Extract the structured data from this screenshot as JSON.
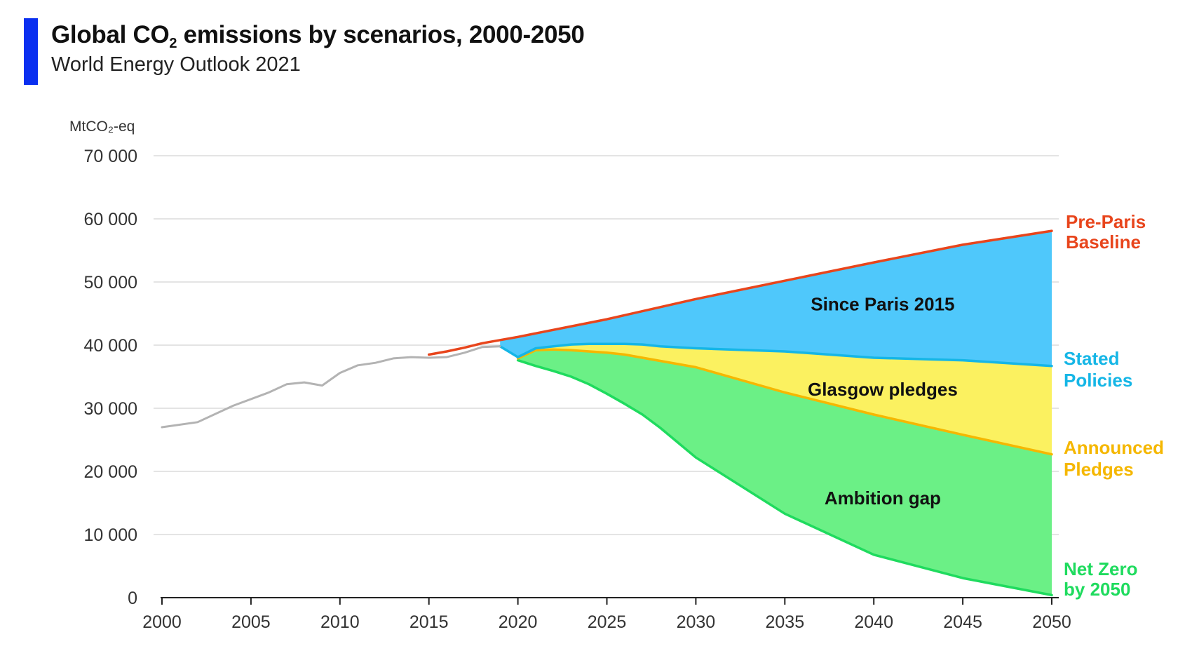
{
  "header": {
    "title_prefix": "Global CO",
    "title_sub": "2",
    "title_suffix": " emissions by scenarios, 2000-2050",
    "subtitle": "World Energy Outlook 2021",
    "accent_color": "#0a2ff0"
  },
  "chart_data": {
    "type": "area",
    "title": "Global CO2 emissions by scenarios, 2000-2050",
    "subtitle": "World Energy Outlook 2021",
    "ylabel": "MtCO₂-eq",
    "xlabel": "",
    "xlim": [
      2000,
      2050
    ],
    "ylim": [
      0,
      70000
    ],
    "grid": true,
    "x_ticks": [
      2000,
      2005,
      2010,
      2015,
      2020,
      2025,
      2030,
      2035,
      2040,
      2045,
      2050
    ],
    "x_tick_labels": [
      "2000",
      "2005",
      "2010",
      "2015",
      "2020",
      "2025",
      "2030",
      "2035",
      "2040",
      "2045",
      "2050"
    ],
    "y_ticks": [
      0,
      10000,
      20000,
      30000,
      40000,
      50000,
      60000,
      70000
    ],
    "y_tick_labels": [
      "0",
      "10 000",
      "20 000",
      "30 000",
      "40 000",
      "50 000",
      "60 000",
      "70 000"
    ],
    "series": [
      {
        "name": "Historical",
        "color": "#b3b3b3",
        "x": [
          2000,
          2002,
          2004,
          2006,
          2007,
          2008,
          2009,
          2010,
          2011,
          2012,
          2013,
          2014,
          2015,
          2016,
          2017,
          2018,
          2019
        ],
        "y": [
          27000,
          27800,
          30400,
          32500,
          33800,
          34100,
          33600,
          35600,
          36800,
          37200,
          37900,
          38100,
          38000,
          38100,
          38800,
          39700,
          39800
        ]
      },
      {
        "name": "Pre-Paris Baseline",
        "label": "Pre-Paris Baseline",
        "label_lines": [
          "Pre-Paris",
          "Baseline"
        ],
        "color": "#e8451c",
        "x": [
          2015,
          2016,
          2017,
          2018,
          2019,
          2020,
          2025,
          2030,
          2035,
          2040,
          2045,
          2050
        ],
        "y": [
          38500,
          39000,
          39600,
          40300,
          40800,
          41300,
          44100,
          47300,
          50200,
          53100,
          55900,
          58100
        ]
      },
      {
        "name": "Stated Policies",
        "label": "Stated Policies",
        "label_lines": [
          "Stated",
          "Policies"
        ],
        "color": "#15b6e6",
        "x": [
          2019,
          2020,
          2021,
          2022,
          2023,
          2024,
          2025,
          2026,
          2027,
          2028,
          2030,
          2035,
          2040,
          2045,
          2050
        ],
        "y": [
          39800,
          38100,
          39500,
          39800,
          40100,
          40200,
          40200,
          40200,
          40100,
          39800,
          39500,
          39000,
          38000,
          37600,
          36700
        ]
      },
      {
        "name": "Announced Pledges",
        "label": "Announced Pledges",
        "label_lines": [
          "Announced",
          "Pledges"
        ],
        "color": "#f5b700",
        "x": [
          2020,
          2021,
          2022,
          2023,
          2024,
          2025,
          2026,
          2027,
          2028,
          2030,
          2035,
          2040,
          2045,
          2050
        ],
        "y": [
          37900,
          39200,
          39300,
          39200,
          39000,
          38800,
          38500,
          38000,
          37500,
          36500,
          32500,
          29000,
          25800,
          22700
        ]
      },
      {
        "name": "Net Zero by 2050",
        "label": "Net Zero by 2050",
        "label_lines": [
          "Net Zero",
          "by 2050"
        ],
        "color": "#1fdb5e",
        "x": [
          2020,
          2021,
          2022,
          2023,
          2024,
          2025,
          2026,
          2027,
          2028,
          2030,
          2035,
          2040,
          2045,
          2050
        ],
        "y": [
          37600,
          36700,
          35900,
          35000,
          33800,
          32300,
          30700,
          29000,
          26900,
          22200,
          13300,
          6800,
          3100,
          400
        ]
      }
    ],
    "regions": [
      {
        "name": "Since Paris 2015",
        "label": "Since Paris 2015",
        "upper": "Pre-Paris Baseline",
        "lower": "Stated Policies",
        "color": "#4fc8fb",
        "label_x": 2040.5,
        "label_y": 46500
      },
      {
        "name": "Glasgow pledges",
        "label": "Glasgow pledges",
        "upper": "Stated Policies",
        "lower": "Announced Pledges",
        "color": "#fbf160",
        "label_x": 2040.5,
        "label_y": 33000
      },
      {
        "name": "Ambition gap",
        "label": "Ambition gap",
        "upper": "Announced Pledges",
        "lower": "Net Zero by 2050",
        "color": "#6bf086",
        "label_x": 2040.5,
        "label_y": 15800
      }
    ]
  }
}
